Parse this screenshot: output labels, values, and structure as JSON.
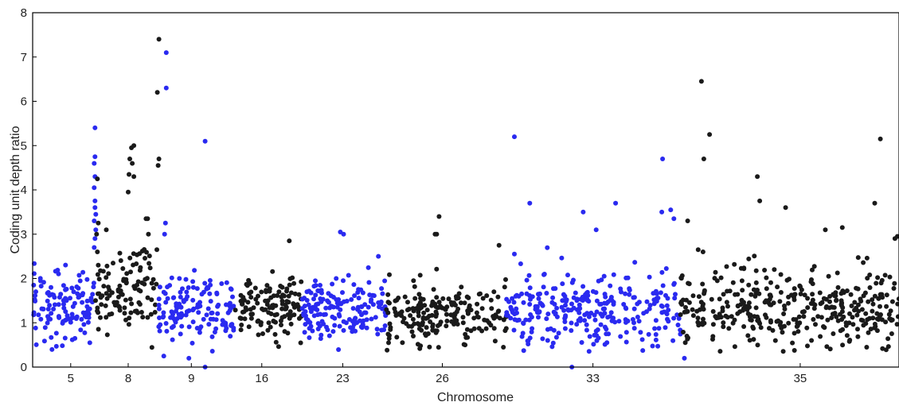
{
  "chart_data": {
    "type": "scatter",
    "title": "",
    "xlabel": "Chromosome",
    "ylabel": "Coding unit depth ratio",
    "ylim": [
      0,
      8
    ],
    "yticks": [
      0,
      1,
      2,
      3,
      4,
      5,
      6,
      7,
      8
    ],
    "xlim": [
      0,
      1070
    ],
    "x_ticks": [
      {
        "label": "5",
        "x": 47
      },
      {
        "label": "8",
        "x": 118
      },
      {
        "label": "9",
        "x": 196
      },
      {
        "label": "16",
        "x": 283
      },
      {
        "label": "23",
        "x": 383
      },
      {
        "label": "26",
        "x": 506
      },
      {
        "label": "33",
        "x": 692
      },
      {
        "label": "35",
        "x": 948
      }
    ],
    "grid": false,
    "legend": "none",
    "colors": {
      "black_series": "#1a1a1a",
      "blue_series": "#2a2af0"
    },
    "segments": [
      {
        "color": "blue",
        "x_start": 0,
        "x_end": 76,
        "level": 1.4,
        "spread": 0.42,
        "count": 120
      },
      {
        "color": "black",
        "x_start": 76,
        "x_end": 115,
        "level": 1.65,
        "spread": 0.38,
        "count": 55
      },
      {
        "color": "black",
        "x_start": 115,
        "x_end": 155,
        "level": 1.9,
        "spread": 0.55,
        "count": 55
      },
      {
        "color": "blue",
        "x_start": 155,
        "x_end": 249,
        "level": 1.35,
        "spread": 0.38,
        "count": 135
      },
      {
        "color": "black",
        "x_start": 249,
        "x_end": 333,
        "level": 1.3,
        "spread": 0.35,
        "count": 125
      },
      {
        "color": "blue",
        "x_start": 333,
        "x_end": 436,
        "level": 1.35,
        "spread": 0.38,
        "count": 160
      },
      {
        "color": "black",
        "x_start": 436,
        "x_end": 585,
        "level": 1.2,
        "spread": 0.35,
        "count": 200
      },
      {
        "color": "blue",
        "x_start": 585,
        "x_end": 600,
        "level": 1.2,
        "spread": 0.3,
        "count": 20
      },
      {
        "color": "blue",
        "x_start": 600,
        "x_end": 800,
        "level": 1.3,
        "spread": 0.45,
        "count": 260
      },
      {
        "color": "black",
        "x_start": 800,
        "x_end": 830,
        "level": 1.3,
        "spread": 0.45,
        "count": 40
      },
      {
        "color": "black",
        "x_start": 838,
        "x_end": 1070,
        "level": 1.3,
        "spread": 0.45,
        "count": 320
      }
    ],
    "outliers": [
      {
        "color": "blue",
        "x": 77,
        "y": 5.4
      },
      {
        "color": "blue",
        "x": 77,
        "y": 4.75
      },
      {
        "color": "blue",
        "x": 76,
        "y": 4.6
      },
      {
        "color": "blue",
        "x": 77,
        "y": 4.3
      },
      {
        "color": "blue",
        "x": 76,
        "y": 4.05
      },
      {
        "color": "blue",
        "x": 77,
        "y": 3.75
      },
      {
        "color": "blue",
        "x": 77,
        "y": 3.6
      },
      {
        "color": "blue",
        "x": 78,
        "y": 3.45
      },
      {
        "color": "blue",
        "x": 76,
        "y": 3.3
      },
      {
        "color": "blue",
        "x": 78,
        "y": 3.1
      },
      {
        "color": "blue",
        "x": 77,
        "y": 2.9
      },
      {
        "color": "blue",
        "x": 76,
        "y": 2.7
      },
      {
        "color": "black",
        "x": 80,
        "y": 4.25
      },
      {
        "color": "black",
        "x": 81,
        "y": 3.25
      },
      {
        "color": "black",
        "x": 79,
        "y": 3.0
      },
      {
        "color": "black",
        "x": 80,
        "y": 2.6
      },
      {
        "color": "black",
        "x": 81,
        "y": 2.3
      },
      {
        "color": "black",
        "x": 91,
        "y": 3.1
      },
      {
        "color": "black",
        "x": 122,
        "y": 4.95
      },
      {
        "color": "black",
        "x": 125,
        "y": 5.0
      },
      {
        "color": "black",
        "x": 120,
        "y": 4.7
      },
      {
        "color": "black",
        "x": 123,
        "y": 4.6
      },
      {
        "color": "black",
        "x": 119,
        "y": 4.35
      },
      {
        "color": "black",
        "x": 125,
        "y": 4.3
      },
      {
        "color": "black",
        "x": 118,
        "y": 3.95
      },
      {
        "color": "black",
        "x": 142,
        "y": 3.35
      },
      {
        "color": "black",
        "x": 140,
        "y": 3.35
      },
      {
        "color": "black",
        "x": 143,
        "y": 3.0
      },
      {
        "color": "black",
        "x": 156,
        "y": 7.4
      },
      {
        "color": "black",
        "x": 154,
        "y": 6.2
      },
      {
        "color": "black",
        "x": 156,
        "y": 4.7
      },
      {
        "color": "black",
        "x": 155,
        "y": 4.55
      },
      {
        "color": "blue",
        "x": 165,
        "y": 7.1
      },
      {
        "color": "blue",
        "x": 165,
        "y": 6.3
      },
      {
        "color": "blue",
        "x": 164,
        "y": 3.25
      },
      {
        "color": "blue",
        "x": 163,
        "y": 3.0
      },
      {
        "color": "blue",
        "x": 162,
        "y": 0.25
      },
      {
        "color": "blue",
        "x": 193,
        "y": 0.2
      },
      {
        "color": "blue",
        "x": 213,
        "y": 5.1
      },
      {
        "color": "blue",
        "x": 213,
        "y": 0.0
      },
      {
        "color": "black",
        "x": 317,
        "y": 2.85
      },
      {
        "color": "blue",
        "x": 380,
        "y": 3.05
      },
      {
        "color": "blue",
        "x": 384,
        "y": 3.0
      },
      {
        "color": "blue",
        "x": 427,
        "y": 2.5
      },
      {
        "color": "black",
        "x": 497,
        "y": 3.0
      },
      {
        "color": "black",
        "x": 499,
        "y": 3.0
      },
      {
        "color": "black",
        "x": 502,
        "y": 3.4
      },
      {
        "color": "black",
        "x": 576,
        "y": 2.75
      },
      {
        "color": "blue",
        "x": 595,
        "y": 5.2
      },
      {
        "color": "blue",
        "x": 595,
        "y": 2.55
      },
      {
        "color": "blue",
        "x": 614,
        "y": 3.7
      },
      {
        "color": "blue",
        "x": 666,
        "y": 0.0
      },
      {
        "color": "blue",
        "x": 680,
        "y": 3.5
      },
      {
        "color": "blue",
        "x": 696,
        "y": 3.1
      },
      {
        "color": "blue",
        "x": 720,
        "y": 3.7
      },
      {
        "color": "blue",
        "x": 778,
        "y": 4.7
      },
      {
        "color": "blue",
        "x": 777,
        "y": 3.5
      },
      {
        "color": "blue",
        "x": 788,
        "y": 3.55
      },
      {
        "color": "blue",
        "x": 792,
        "y": 3.35
      },
      {
        "color": "blue",
        "x": 805,
        "y": 0.2
      },
      {
        "color": "black",
        "x": 809,
        "y": 3.3
      },
      {
        "color": "black",
        "x": 806,
        "y": 0.55
      },
      {
        "color": "black",
        "x": 808,
        "y": 0.7
      },
      {
        "color": "black",
        "x": 826,
        "y": 6.45
      },
      {
        "color": "black",
        "x": 836,
        "y": 5.25
      },
      {
        "color": "black",
        "x": 829,
        "y": 4.7
      },
      {
        "color": "black",
        "x": 822,
        "y": 2.65
      },
      {
        "color": "black",
        "x": 828,
        "y": 2.6
      },
      {
        "color": "black",
        "x": 895,
        "y": 4.3
      },
      {
        "color": "black",
        "x": 898,
        "y": 3.75
      },
      {
        "color": "black",
        "x": 930,
        "y": 3.6
      },
      {
        "color": "black",
        "x": 979,
        "y": 3.1
      },
      {
        "color": "black",
        "x": 1000,
        "y": 3.15
      },
      {
        "color": "black",
        "x": 1040,
        "y": 3.7
      },
      {
        "color": "black",
        "x": 1047,
        "y": 5.15
      },
      {
        "color": "black",
        "x": 1065,
        "y": 2.9
      },
      {
        "color": "black",
        "x": 1068,
        "y": 2.95
      }
    ]
  }
}
